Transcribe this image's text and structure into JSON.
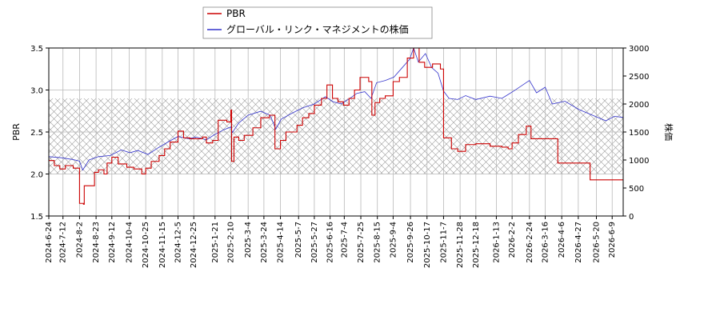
{
  "chart_data": {
    "type": "line",
    "title": "",
    "xlabel": "",
    "y_left_label": "PBR",
    "y_right_label": "株価",
    "y_left_lim": [
      1.5,
      3.5
    ],
    "y_left_ticks": [
      "1.5",
      "2.0",
      "2.5",
      "3.0",
      "3.5"
    ],
    "y_right_lim": [
      0,
      3000
    ],
    "y_right_ticks": [
      "0",
      "500",
      "1000",
      "1500",
      "2000",
      "2500",
      "3000"
    ],
    "x_lim": [
      "2024-06-24",
      "2026-06-23"
    ],
    "x_ticks": [
      "2024-6-24",
      "2024-7-12",
      "2024-8-2",
      "2024-8-23",
      "2024-9-12",
      "2024-10-4",
      "2024-10-25",
      "2024-11-15",
      "2024-12-5",
      "2024-12-25",
      "2025-1-21",
      "2025-2-10",
      "2025-3-4",
      "2025-3-24",
      "2025-4-14",
      "2025-5-7",
      "2025-5-27",
      "2025-6-16",
      "2025-7-4",
      "2025-7-25",
      "2025-8-15",
      "2025-9-4",
      "2025-9-26",
      "2025-10-17",
      "2025-11-7",
      "2025-11-28",
      "2025-12-18",
      "2026-1-13",
      "2026-2-2",
      "2026-2-24",
      "2026-3-16",
      "2026-4-6",
      "2026-4-27",
      "2026-5-20",
      "2026-6-9"
    ],
    "grid": true,
    "legend_position": "top-center",
    "hatched_band": {
      "axis": "left",
      "y_range": [
        2.0,
        2.9
      ]
    },
    "series": [
      {
        "name": "PBR",
        "axis": "left",
        "color": "#cc0000",
        "step": true,
        "points": [
          [
            "2024-06-24",
            2.16
          ],
          [
            "2024-07-01",
            2.1
          ],
          [
            "2024-07-08",
            2.06
          ],
          [
            "2024-07-15",
            2.1
          ],
          [
            "2024-07-25",
            2.07
          ],
          [
            "2024-08-02",
            1.65
          ],
          [
            "2024-08-07",
            1.64
          ],
          [
            "2024-08-08",
            1.86
          ],
          [
            "2024-08-21",
            2.02
          ],
          [
            "2024-08-26",
            2.05
          ],
          [
            "2024-09-02",
            2.0
          ],
          [
            "2024-09-06",
            2.13
          ],
          [
            "2024-09-12",
            2.2
          ],
          [
            "2024-09-20",
            2.12
          ],
          [
            "2024-10-01",
            2.08
          ],
          [
            "2024-10-10",
            2.06
          ],
          [
            "2024-10-20",
            2.0
          ],
          [
            "2024-10-25",
            2.07
          ],
          [
            "2024-11-01",
            2.15
          ],
          [
            "2024-11-11",
            2.22
          ],
          [
            "2024-11-18",
            2.3
          ],
          [
            "2024-11-25",
            2.38
          ],
          [
            "2024-12-05",
            2.51
          ],
          [
            "2024-12-12",
            2.43
          ],
          [
            "2024-12-20",
            2.42
          ],
          [
            "2025-01-05",
            2.44
          ],
          [
            "2025-01-10",
            2.37
          ],
          [
            "2025-01-18",
            2.4
          ],
          [
            "2025-01-25",
            2.64
          ],
          [
            "2025-02-05",
            2.62
          ],
          [
            "2025-02-10",
            2.76
          ],
          [
            "2025-02-11",
            2.15
          ],
          [
            "2025-02-14",
            2.44
          ],
          [
            "2025-02-20",
            2.4
          ],
          [
            "2025-02-27",
            2.46
          ],
          [
            "2025-03-10",
            2.55
          ],
          [
            "2025-03-20",
            2.67
          ],
          [
            "2025-03-31",
            2.7
          ],
          [
            "2025-04-07",
            2.3
          ],
          [
            "2025-04-14",
            2.4
          ],
          [
            "2025-04-21",
            2.5
          ],
          [
            "2025-05-05",
            2.58
          ],
          [
            "2025-05-12",
            2.67
          ],
          [
            "2025-05-20",
            2.72
          ],
          [
            "2025-05-27",
            2.82
          ],
          [
            "2025-06-05",
            2.9
          ],
          [
            "2025-06-12",
            3.06
          ],
          [
            "2025-06-19",
            2.9
          ],
          [
            "2025-06-26",
            2.86
          ],
          [
            "2025-07-03",
            2.82
          ],
          [
            "2025-07-10",
            2.9
          ],
          [
            "2025-07-17",
            3.0
          ],
          [
            "2025-07-24",
            3.15
          ],
          [
            "2025-08-04",
            3.1
          ],
          [
            "2025-08-08",
            2.7
          ],
          [
            "2025-08-12",
            2.85
          ],
          [
            "2025-08-18",
            2.9
          ],
          [
            "2025-08-25",
            2.93
          ],
          [
            "2025-09-04",
            3.1
          ],
          [
            "2025-09-12",
            3.15
          ],
          [
            "2025-09-22",
            3.38
          ],
          [
            "2025-09-30",
            3.5
          ],
          [
            "2025-10-07",
            3.33
          ],
          [
            "2025-10-14",
            3.27
          ],
          [
            "2025-10-24",
            3.31
          ],
          [
            "2025-11-03",
            3.25
          ],
          [
            "2025-11-07",
            2.43
          ],
          [
            "2025-11-17",
            2.3
          ],
          [
            "2025-11-25",
            2.27
          ],
          [
            "2025-12-05",
            2.35
          ],
          [
            "2025-12-18",
            2.36
          ],
          [
            "2026-01-05",
            2.33
          ],
          [
            "2026-01-20",
            2.32
          ],
          [
            "2026-01-28",
            2.3
          ],
          [
            "2026-02-02",
            2.37
          ],
          [
            "2026-02-10",
            2.47
          ],
          [
            "2026-02-20",
            2.57
          ],
          [
            "2026-02-26",
            2.42
          ],
          [
            "2026-03-20",
            2.42
          ],
          [
            "2026-04-01",
            2.13
          ],
          [
            "2026-05-12",
            1.93
          ],
          [
            "2026-06-23",
            1.93
          ]
        ]
      },
      {
        "name": "グローバル・リンク・マネジメントの株価",
        "axis": "right",
        "color": "#3333cc",
        "step": false,
        "points": [
          [
            "2024-06-24",
            1060
          ],
          [
            "2024-07-10",
            1040
          ],
          [
            "2024-07-24",
            1010
          ],
          [
            "2024-08-02",
            980
          ],
          [
            "2024-08-06",
            820
          ],
          [
            "2024-08-14",
            1000
          ],
          [
            "2024-08-26",
            1060
          ],
          [
            "2024-09-10",
            1080
          ],
          [
            "2024-09-24",
            1180
          ],
          [
            "2024-10-05",
            1130
          ],
          [
            "2024-10-15",
            1170
          ],
          [
            "2024-10-28",
            1100
          ],
          [
            "2024-11-10",
            1220
          ],
          [
            "2024-11-22",
            1320
          ],
          [
            "2024-12-05",
            1420
          ],
          [
            "2024-12-18",
            1380
          ],
          [
            "2024-12-28",
            1410
          ],
          [
            "2025-01-10",
            1360
          ],
          [
            "2025-01-20",
            1450
          ],
          [
            "2025-02-01",
            1540
          ],
          [
            "2025-02-10",
            1590
          ],
          [
            "2025-02-12",
            1490
          ],
          [
            "2025-02-20",
            1660
          ],
          [
            "2025-03-04",
            1800
          ],
          [
            "2025-03-20",
            1870
          ],
          [
            "2025-04-01",
            1800
          ],
          [
            "2025-04-08",
            1550
          ],
          [
            "2025-04-15",
            1730
          ],
          [
            "2025-04-28",
            1830
          ],
          [
            "2025-05-12",
            1930
          ],
          [
            "2025-05-27",
            2000
          ],
          [
            "2025-06-10",
            2130
          ],
          [
            "2025-06-20",
            2040
          ],
          [
            "2025-06-30",
            2000
          ],
          [
            "2025-07-10",
            2090
          ],
          [
            "2025-07-20",
            2190
          ],
          [
            "2025-07-30",
            2220
          ],
          [
            "2025-08-07",
            2100
          ],
          [
            "2025-08-14",
            2380
          ],
          [
            "2025-08-25",
            2420
          ],
          [
            "2025-09-05",
            2480
          ],
          [
            "2025-09-15",
            2640
          ],
          [
            "2025-09-25",
            2800
          ],
          [
            "2025-09-30",
            3000
          ],
          [
            "2025-10-06",
            2750
          ],
          [
            "2025-10-15",
            2900
          ],
          [
            "2025-10-23",
            2650
          ],
          [
            "2025-10-31",
            2550
          ],
          [
            "2025-11-07",
            2230
          ],
          [
            "2025-11-14",
            2100
          ],
          [
            "2025-11-25",
            2080
          ],
          [
            "2025-12-05",
            2150
          ],
          [
            "2025-12-18",
            2080
          ],
          [
            "2026-01-05",
            2140
          ],
          [
            "2026-01-20",
            2100
          ],
          [
            "2026-02-05",
            2240
          ],
          [
            "2026-02-24",
            2420
          ],
          [
            "2026-03-05",
            2200
          ],
          [
            "2026-03-16",
            2300
          ],
          [
            "2026-03-25",
            2000
          ],
          [
            "2026-04-10",
            2050
          ],
          [
            "2026-04-28",
            1900
          ],
          [
            "2026-05-15",
            1800
          ],
          [
            "2026-06-01",
            1700
          ],
          [
            "2026-06-12",
            1780
          ],
          [
            "2026-06-23",
            1760
          ]
        ]
      }
    ]
  }
}
